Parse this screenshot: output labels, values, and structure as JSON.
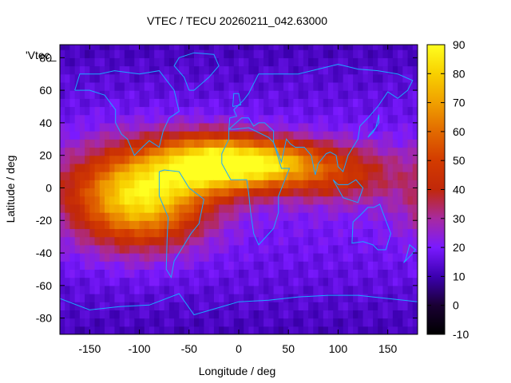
{
  "chart_data": {
    "type": "heatmap",
    "title": "VTEC / TECU 20260211_042.63000",
    "xlabel": "Longitude / deg",
    "ylabel": "Latitude / deg",
    "xlim": [
      -180,
      180
    ],
    "ylim": [
      -90,
      88
    ],
    "x_ticks": [
      -150,
      -100,
      -50,
      0,
      50,
      100,
      150
    ],
    "y_ticks": [
      -80,
      -60,
      -40,
      -20,
      0,
      20,
      40,
      60,
      80
    ],
    "colorbar": {
      "min": -10,
      "max": 90,
      "ticks": [
        -10,
        0,
        10,
        20,
        30,
        40,
        50,
        60,
        70,
        80,
        90
      ]
    },
    "series_label": "'Vtec_",
    "background_level": 15,
    "peaks": [
      {
        "lon": -100,
        "lat": -5,
        "value": 80,
        "spread_lon": 45,
        "spread_lat": 20
      },
      {
        "lon": -25,
        "lat": 15,
        "value": 80,
        "spread_lon": 40,
        "spread_lat": 12
      },
      {
        "lon": 35,
        "lat": 15,
        "value": 55,
        "spread_lon": 35,
        "spread_lat": 10
      },
      {
        "lon": 100,
        "lat": 10,
        "value": 40,
        "spread_lon": 40,
        "spread_lat": 12
      }
    ],
    "colormap": [
      {
        "v": -10,
        "color": "#000000"
      },
      {
        "v": 0,
        "color": "#1a0033"
      },
      {
        "v": 10,
        "color": "#3c00b0"
      },
      {
        "v": 20,
        "color": "#7a1aff"
      },
      {
        "v": 30,
        "color": "#a82aa0"
      },
      {
        "v": 40,
        "color": "#c1280a"
      },
      {
        "v": 50,
        "color": "#d33b00"
      },
      {
        "v": 60,
        "color": "#e26a00"
      },
      {
        "v": 70,
        "color": "#f0a000"
      },
      {
        "v": 80,
        "color": "#f8d000"
      },
      {
        "v": 90,
        "color": "#ffff20"
      }
    ],
    "coastline_color": "#1aa8ff"
  }
}
